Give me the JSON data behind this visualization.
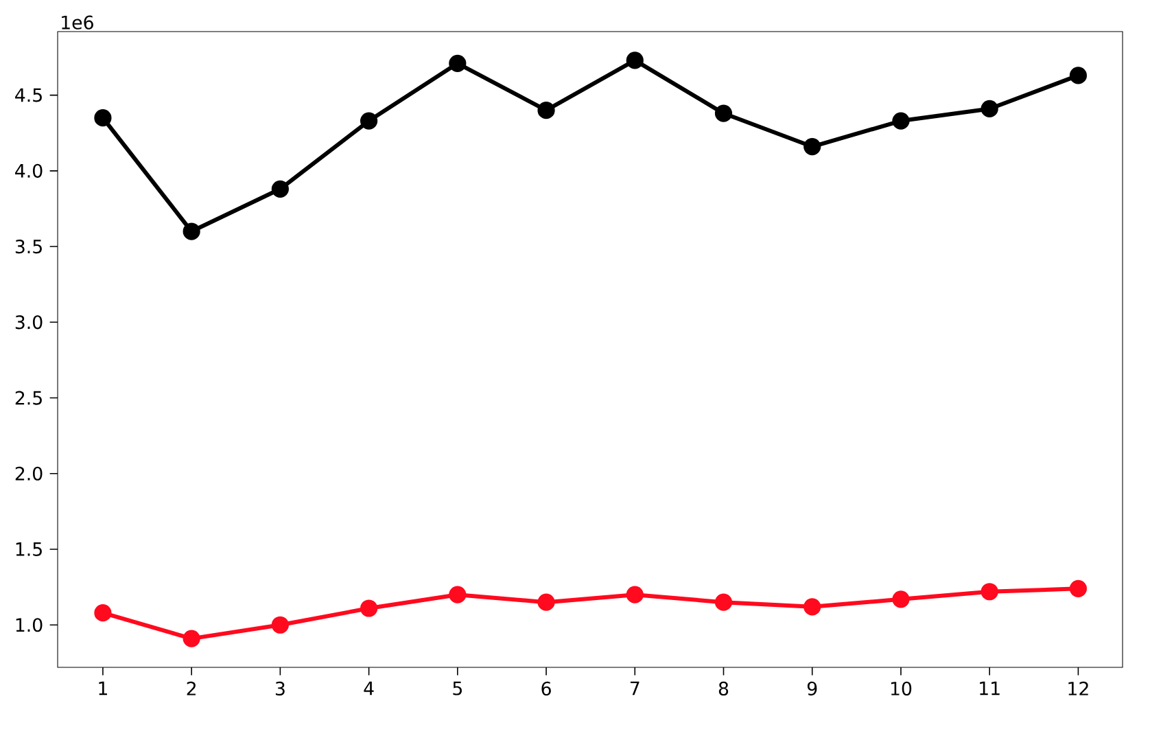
{
  "chart_data": {
    "type": "line",
    "x": [
      1,
      2,
      3,
      4,
      5,
      6,
      7,
      8,
      9,
      10,
      11,
      12
    ],
    "series": [
      {
        "color": "#000000",
        "values": [
          4.35,
          3.6,
          3.88,
          4.33,
          4.71,
          4.4,
          4.73,
          4.38,
          4.16,
          4.33,
          4.41,
          4.63
        ]
      },
      {
        "color": "#ff0a1e",
        "values": [
          1.08,
          0.91,
          1.0,
          1.11,
          1.2,
          1.15,
          1.2,
          1.15,
          1.12,
          1.17,
          1.22,
          1.24
        ]
      }
    ],
    "xlim": [
      0.49,
      12.5
    ],
    "ylim": [
      0.72,
      4.92
    ],
    "xticks": [
      1,
      2,
      3,
      4,
      5,
      6,
      7,
      8,
      9,
      10,
      11,
      12
    ],
    "yticks": [
      {
        "value": 1,
        "label": "1.0"
      },
      {
        "value": 1.5,
        "label": "1.5"
      },
      {
        "value": 2,
        "label": "2.0"
      },
      {
        "value": 2.5,
        "label": "2.5"
      },
      {
        "value": 3,
        "label": "3.0"
      },
      {
        "value": 3.5,
        "label": "3.5"
      },
      {
        "value": 4,
        "label": "4.0"
      },
      {
        "value": 4.5,
        "label": "4.5"
      }
    ],
    "annotations": [
      "1e6"
    ],
    "marker": "circle",
    "line_style": "solid",
    "grid": false
  }
}
